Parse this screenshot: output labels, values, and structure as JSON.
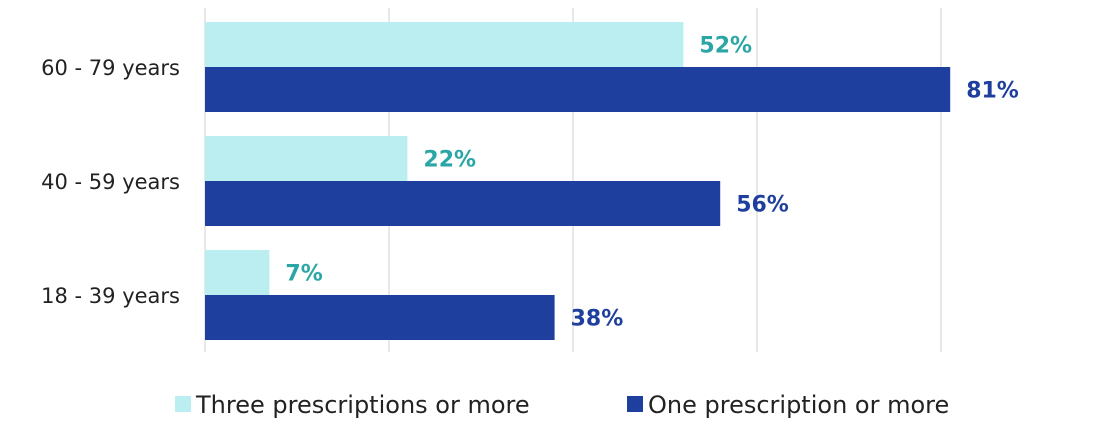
{
  "chart_data": {
    "type": "bar",
    "orientation": "horizontal",
    "categories": [
      "60 - 79 years",
      "40 - 59 years",
      "18 - 39 years"
    ],
    "series": [
      {
        "name": "Three prescriptions or more",
        "values": [
          52,
          22,
          7
        ],
        "labels": [
          "52%",
          "22%",
          "7%"
        ],
        "color": "#bbeef0",
        "label_color": "#2aa6a6"
      },
      {
        "name": "One prescription or more",
        "values": [
          81,
          56,
          38
        ],
        "labels": [
          "81%",
          "56%",
          "38%"
        ],
        "color": "#1f3f9e",
        "label_color": "#1f3f9e"
      }
    ],
    "xlim": [
      0,
      100
    ],
    "x_tick_step": 20,
    "grid": true,
    "gridline_color": "#d9d9d9",
    "legend_position": "bottom",
    "value_unit": "%"
  }
}
